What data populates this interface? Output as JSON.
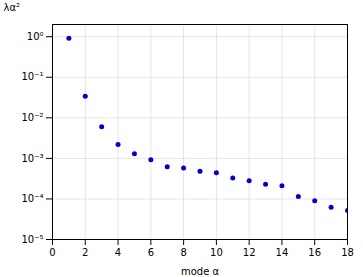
{
  "chart_data": {
    "type": "scatter",
    "x": [
      1,
      2,
      3,
      4,
      5,
      6,
      7,
      8,
      9,
      10,
      11,
      12,
      13,
      14,
      15,
      16,
      17,
      18
    ],
    "values": [
      0.92,
      0.034,
      0.006,
      0.0022,
      0.0013,
      0.00092,
      0.00062,
      0.00058,
      0.00048,
      0.00044,
      0.00033,
      0.00028,
      0.00023,
      0.00021,
      0.000115,
      9e-05,
      6.2e-05,
      5.2e-05
    ],
    "xlabel": "mode α",
    "ylabel": "λα²",
    "xlim": [
      0,
      18
    ],
    "ylim": [
      1e-05,
      2
    ],
    "xticks": [
      0,
      2,
      4,
      6,
      8,
      10,
      12,
      14,
      16,
      18
    ],
    "yticks": [
      {
        "value": 1e-05,
        "label": "10⁻⁵"
      },
      {
        "value": 0.0001,
        "label": "10⁻⁴"
      },
      {
        "value": 0.001,
        "label": "10⁻³"
      },
      {
        "value": 0.01,
        "label": "10⁻²"
      },
      {
        "value": 0.1,
        "label": "10⁻¹"
      },
      {
        "value": 1,
        "label": "10⁰"
      }
    ],
    "log": "y",
    "grid": true,
    "color": "#0000cc",
    "marker": "circle"
  }
}
